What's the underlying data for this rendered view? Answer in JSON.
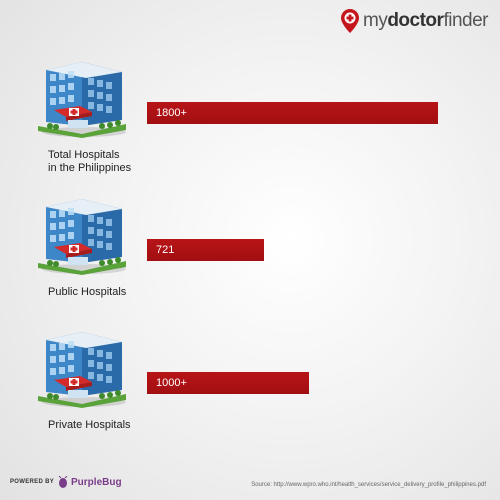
{
  "brand": {
    "name_part1": "my",
    "name_part2": "doctor",
    "name_part3": "finder"
  },
  "chart_data": {
    "type": "bar",
    "orientation": "horizontal",
    "categories": [
      "Total Hospitals\nin the Philippines",
      "Public Hospitals",
      "Private Hospitals"
    ],
    "values": [
      1800,
      721,
      1000
    ],
    "value_labels": [
      "1800+",
      "721",
      "1000+"
    ],
    "xlim": [
      0,
      1800
    ],
    "grid": false,
    "bar_color": "#b01316"
  },
  "footer": {
    "powered_by": "POWERED BY",
    "powered_brand": "PurpleBug",
    "source": "Source: http://www.wpro.who.int/health_services/service_delivery_profile_philippines.pdf"
  },
  "colors": {
    "accent_red": "#b01316",
    "purplebug": "#7a3d8a"
  }
}
